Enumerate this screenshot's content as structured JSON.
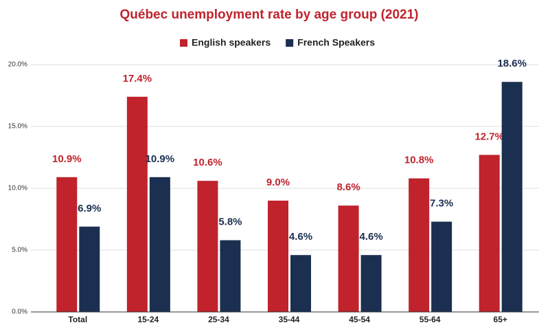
{
  "chart_data": {
    "type": "bar",
    "title": "Québec unemployment rate by age group (2021)",
    "categories": [
      "Total",
      "15-24",
      "25-34",
      "35-44",
      "45-54",
      "55-64",
      "65+"
    ],
    "series": [
      {
        "name": "English speakers",
        "color": "#c0232c",
        "values": [
          10.9,
          17.4,
          10.6,
          9.0,
          8.6,
          10.8,
          12.7
        ],
        "value_labels": [
          "10.9%",
          "17.4%",
          "10.6%",
          "9.0%",
          "8.6%",
          "10.8%",
          "12.7%"
        ]
      },
      {
        "name": "French Speakers",
        "color": "#1b2f50",
        "values": [
          6.9,
          10.9,
          5.8,
          4.6,
          4.6,
          7.3,
          18.6
        ],
        "value_labels": [
          "6.9%",
          "10.9%",
          "5.8%",
          "4.6%",
          "4.6%",
          "7.3%",
          "18.6%"
        ]
      }
    ],
    "ylim": [
      0,
      20
    ],
    "yticks": [
      {
        "value": 0,
        "label": "0.0%"
      },
      {
        "value": 5,
        "label": "5.0%"
      },
      {
        "value": 10,
        "label": "10.0%"
      },
      {
        "value": 15,
        "label": "15.0%"
      },
      {
        "value": 20,
        "label": "20.0%"
      }
    ],
    "grid": true,
    "legend": "top"
  }
}
